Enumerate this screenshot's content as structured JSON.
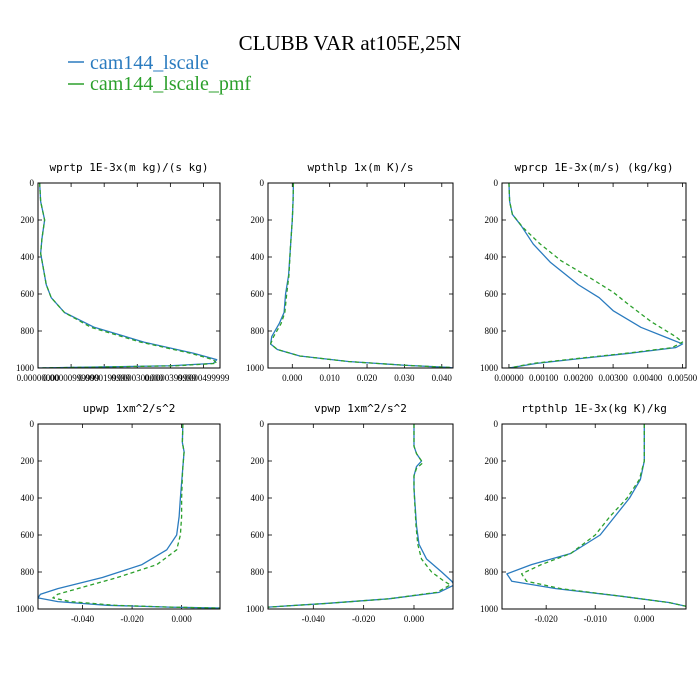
{
  "figure": {
    "title": "CLUBB VAR at105E,25N",
    "legend": [
      {
        "label": "cam144_lscale",
        "color": "#2a7bbf",
        "dash": "solid"
      },
      {
        "label": "cam144_lscale_pmf",
        "color": "#2ca02c",
        "dash": "dashed"
      }
    ]
  },
  "chart_data": [
    {
      "type": "line",
      "title": "wprtp  1E-3x(m kg)/(s kg)",
      "xlim": [
        0,
        5.5e-05
      ],
      "ylim": [
        1000,
        0
      ],
      "xticks": [
        0,
        1e-05,
        2e-05,
        3e-05,
        4e-05,
        5e-05
      ],
      "xtick_labels": [
        "0.00000000",
        "0.00000999999",
        "0.0000199999",
        "0.0000300000",
        "0.0000399999",
        "0.0000499999"
      ],
      "yticks": [
        0,
        200,
        400,
        600,
        800,
        1000
      ],
      "ytick_labels": [
        "0",
        "200",
        "400",
        "600",
        "800",
        "1000"
      ],
      "series": [
        {
          "name": "cam144_lscale",
          "points": [
            [
              5e-07,
              0
            ],
            [
              8e-07,
              100
            ],
            [
              2e-06,
              200
            ],
            [
              1.2e-06,
              300
            ],
            [
              8e-07,
              380
            ],
            [
              1.5e-06,
              450
            ],
            [
              2.5e-06,
              550
            ],
            [
              4e-06,
              620
            ],
            [
              8e-06,
              700
            ],
            [
              1.7e-05,
              780
            ],
            [
              3.2e-05,
              860
            ],
            [
              4.7e-05,
              920
            ],
            [
              5.4e-05,
              955
            ],
            [
              5.3e-05,
              975
            ],
            [
              4e-05,
              988
            ],
            [
              1e-05,
              997
            ],
            [
              0,
              1000
            ]
          ]
        },
        {
          "name": "cam144_lscale_pmf",
          "points": [
            [
              5e-07,
              0
            ],
            [
              8e-07,
              100
            ],
            [
              2e-06,
              200
            ],
            [
              1.2e-06,
              300
            ],
            [
              8e-07,
              380
            ],
            [
              1.5e-06,
              450
            ],
            [
              2.5e-06,
              550
            ],
            [
              4e-06,
              620
            ],
            [
              8e-06,
              700
            ],
            [
              1.6e-05,
              780
            ],
            [
              3.1e-05,
              860
            ],
            [
              4.6e-05,
              920
            ],
            [
              5.3e-05,
              955
            ],
            [
              5.4e-05,
              975
            ],
            [
              4.2e-05,
              988
            ],
            [
              1.1e-05,
              997
            ],
            [
              0,
              1000
            ]
          ]
        }
      ]
    },
    {
      "type": "line",
      "title": "wpthlp  1x(m K)/s",
      "xlim": [
        -0.0065,
        0.043
      ],
      "ylim": [
        1000,
        0
      ],
      "xticks": [
        0,
        0.01,
        0.02,
        0.03,
        0.04
      ],
      "xtick_labels": [
        "0.000",
        "0.010",
        "0.020",
        "0.030",
        "0.040"
      ],
      "yticks": [
        0,
        200,
        400,
        600,
        800,
        1000
      ],
      "ytick_labels": [
        "0",
        "200",
        "400",
        "600",
        "800",
        "1000"
      ],
      "series": [
        {
          "name": "cam144_lscale",
          "points": [
            [
              0.0003,
              0
            ],
            [
              0.0002,
              100
            ],
            [
              0,
              200
            ],
            [
              -0.0005,
              350
            ],
            [
              -0.001,
              500
            ],
            [
              -0.0018,
              600
            ],
            [
              -0.0022,
              700
            ],
            [
              -0.0035,
              760
            ],
            [
              -0.0055,
              830
            ],
            [
              -0.0058,
              870
            ],
            [
              -0.004,
              900
            ],
            [
              0.002,
              935
            ],
            [
              0.015,
              965
            ],
            [
              0.03,
              985
            ],
            [
              0.042,
              997
            ],
            [
              0.043,
              1000
            ]
          ]
        },
        {
          "name": "cam144_lscale_pmf",
          "points": [
            [
              0.0003,
              0
            ],
            [
              0.0002,
              100
            ],
            [
              0,
              200
            ],
            [
              -0.0005,
              350
            ],
            [
              -0.0009,
              500
            ],
            [
              -0.0015,
              600
            ],
            [
              -0.002,
              700
            ],
            [
              -0.003,
              760
            ],
            [
              -0.005,
              830
            ],
            [
              -0.0058,
              870
            ],
            [
              -0.004,
              900
            ],
            [
              0.002,
              935
            ],
            [
              0.015,
              965
            ],
            [
              0.03,
              985
            ],
            [
              0.042,
              997
            ],
            [
              0.043,
              1000
            ]
          ]
        }
      ]
    },
    {
      "type": "line",
      "title": "wprcp  1E-3x(m/s) (kg/kg)",
      "xlim": [
        -0.0002,
        0.0051
      ],
      "ylim": [
        1000,
        0
      ],
      "xticks": [
        0,
        0.001,
        0.002,
        0.003,
        0.004,
        0.005
      ],
      "xtick_labels": [
        "0.00000",
        "0.00100",
        "0.00200",
        "0.00300",
        "0.00400",
        "0.00500"
      ],
      "yticks": [
        0,
        200,
        400,
        600,
        800,
        1000
      ],
      "ytick_labels": [
        "0",
        "200",
        "400",
        "600",
        "800",
        "1000"
      ],
      "series": [
        {
          "name": "cam144_lscale",
          "points": [
            [
              0,
              0
            ],
            [
              2e-05,
              100
            ],
            [
              0.0001,
              170
            ],
            [
              0.00035,
              230
            ],
            [
              0.0007,
              330
            ],
            [
              0.0012,
              430
            ],
            [
              0.002,
              550
            ],
            [
              0.0026,
              620
            ],
            [
              0.003,
              690
            ],
            [
              0.0038,
              780
            ],
            [
              0.0046,
              840
            ],
            [
              0.005,
              870
            ],
            [
              0.0048,
              890
            ],
            [
              0.0035,
              920
            ],
            [
              0.002,
              950
            ],
            [
              0.0008,
              975
            ],
            [
              0,
              1000
            ]
          ]
        },
        {
          "name": "cam144_lscale_pmf",
          "points": [
            [
              0,
              0
            ],
            [
              2e-05,
              100
            ],
            [
              0.0001,
              170
            ],
            [
              0.0004,
              240
            ],
            [
              0.0009,
              330
            ],
            [
              0.0015,
              420
            ],
            [
              0.0024,
              520
            ],
            [
              0.003,
              590
            ],
            [
              0.0034,
              650
            ],
            [
              0.0041,
              750
            ],
            [
              0.0048,
              830
            ],
            [
              0.005,
              860
            ],
            [
              0.0047,
              890
            ],
            [
              0.0034,
              920
            ],
            [
              0.0019,
              950
            ],
            [
              0.0007,
              975
            ],
            [
              0,
              1000
            ]
          ]
        }
      ]
    },
    {
      "type": "line",
      "title": "upwp  1xm^2/s^2",
      "xlim": [
        -0.058,
        0.0155
      ],
      "ylim": [
        1000,
        0
      ],
      "xticks": [
        -0.04,
        -0.02,
        0
      ],
      "xtick_labels": [
        "-0.040",
        "-0.020",
        "0.000"
      ],
      "yticks": [
        0,
        200,
        400,
        600,
        800,
        1000
      ],
      "ytick_labels": [
        "0",
        "200",
        "400",
        "600",
        "800",
        "1000"
      ],
      "series": [
        {
          "name": "cam144_lscale",
          "points": [
            [
              0.0005,
              0
            ],
            [
              0.0003,
              100
            ],
            [
              0.001,
              150
            ],
            [
              0.0004,
              250
            ],
            [
              -0.0005,
              400
            ],
            [
              -0.001,
              500
            ],
            [
              -0.002,
              600
            ],
            [
              -0.006,
              680
            ],
            [
              -0.016,
              760
            ],
            [
              -0.032,
              830
            ],
            [
              -0.05,
              890
            ],
            [
              -0.057,
              920
            ],
            [
              -0.058,
              940
            ],
            [
              -0.05,
              960
            ],
            [
              -0.03,
              980
            ],
            [
              -0.005,
              990
            ],
            [
              0.0155,
              995
            ]
          ]
        },
        {
          "name": "cam144_lscale_pmf",
          "points": [
            [
              0.0005,
              0
            ],
            [
              0.0003,
              100
            ],
            [
              0.001,
              150
            ],
            [
              0.0004,
              250
            ],
            [
              0,
              400
            ],
            [
              0,
              500
            ],
            [
              -0.0005,
              600
            ],
            [
              -0.002,
              680
            ],
            [
              -0.01,
              760
            ],
            [
              -0.026,
              830
            ],
            [
              -0.042,
              890
            ],
            [
              -0.05,
              920
            ],
            [
              -0.052,
              940
            ],
            [
              -0.045,
              960
            ],
            [
              -0.027,
              980
            ],
            [
              -0.004,
              990
            ],
            [
              0.0155,
              995
            ]
          ]
        }
      ]
    },
    {
      "type": "line",
      "title": "vpwp  1xm^2/s^2",
      "xlim": [
        -0.058,
        0.0155
      ],
      "ylim": [
        1000,
        0
      ],
      "xticks": [
        -0.04,
        -0.02,
        0
      ],
      "xtick_labels": [
        "-0.040",
        "-0.020",
        "0.000"
      ],
      "yticks": [
        0,
        200,
        400,
        600,
        800,
        1000
      ],
      "ytick_labels": [
        "0",
        "200",
        "400",
        "600",
        "800",
        "1000"
      ],
      "series": [
        {
          "name": "cam144_lscale",
          "points": [
            [
              0,
              0
            ],
            [
              0,
              120
            ],
            [
              0.001,
              160
            ],
            [
              0.003,
              200
            ],
            [
              0.001,
              230
            ],
            [
              0,
              280
            ],
            [
              0,
              350
            ],
            [
              0.0005,
              450
            ],
            [
              0.001,
              550
            ],
            [
              0.002,
              650
            ],
            [
              0.005,
              730
            ],
            [
              0.011,
              800
            ],
            [
              0.015,
              850
            ],
            [
              0.016,
              870
            ],
            [
              0.01,
              910
            ],
            [
              -0.01,
              945
            ],
            [
              -0.035,
              970
            ],
            [
              -0.058,
              990
            ]
          ]
        },
        {
          "name": "cam144_lscale_pmf",
          "points": [
            [
              0,
              0
            ],
            [
              0,
              120
            ],
            [
              0.001,
              160
            ],
            [
              0.0035,
              210
            ],
            [
              0.001,
              240
            ],
            [
              0,
              280
            ],
            [
              0,
              350
            ],
            [
              0.0004,
              450
            ],
            [
              0.0008,
              550
            ],
            [
              0.0015,
              650
            ],
            [
              0.003,
              730
            ],
            [
              0.007,
              800
            ],
            [
              0.012,
              850
            ],
            [
              0.0145,
              870
            ],
            [
              0.009,
              910
            ],
            [
              -0.01,
              945
            ],
            [
              -0.035,
              970
            ],
            [
              -0.058,
              990
            ]
          ]
        }
      ]
    },
    {
      "type": "line",
      "title": "rtpthlp  1E-3x(kg K)/kg",
      "xlim": [
        -0.029,
        0.0085
      ],
      "ylim": [
        1000,
        0
      ],
      "xticks": [
        -0.02,
        -0.01,
        0
      ],
      "xtick_labels": [
        "-0.020",
        "-0.010",
        "0.000"
      ],
      "yticks": [
        0,
        200,
        400,
        600,
        800,
        1000
      ],
      "ytick_labels": [
        "0",
        "200",
        "400",
        "600",
        "800",
        "1000"
      ],
      "series": [
        {
          "name": "cam144_lscale",
          "points": [
            [
              0,
              0
            ],
            [
              0,
              100
            ],
            [
              0,
              200
            ],
            [
              -0.0008,
              300
            ],
            [
              -0.003,
              400
            ],
            [
              -0.006,
              500
            ],
            [
              -0.009,
              600
            ],
            [
              -0.015,
              700
            ],
            [
              -0.023,
              760
            ],
            [
              -0.028,
              810
            ],
            [
              -0.027,
              850
            ],
            [
              -0.018,
              890
            ],
            [
              -0.005,
              930
            ],
            [
              0.005,
              965
            ],
            [
              0.0085,
              985
            ]
          ]
        },
        {
          "name": "cam144_lscale_pmf",
          "points": [
            [
              0,
              0
            ],
            [
              0,
              100
            ],
            [
              0,
              200
            ],
            [
              -0.001,
              300
            ],
            [
              -0.0035,
              400
            ],
            [
              -0.007,
              500
            ],
            [
              -0.01,
              600
            ],
            [
              -0.015,
              700
            ],
            [
              -0.021,
              760
            ],
            [
              -0.025,
              810
            ],
            [
              -0.024,
              850
            ],
            [
              -0.017,
              890
            ],
            [
              -0.005,
              930
            ],
            [
              0.005,
              965
            ],
            [
              0.0085,
              985
            ]
          ]
        }
      ]
    }
  ]
}
